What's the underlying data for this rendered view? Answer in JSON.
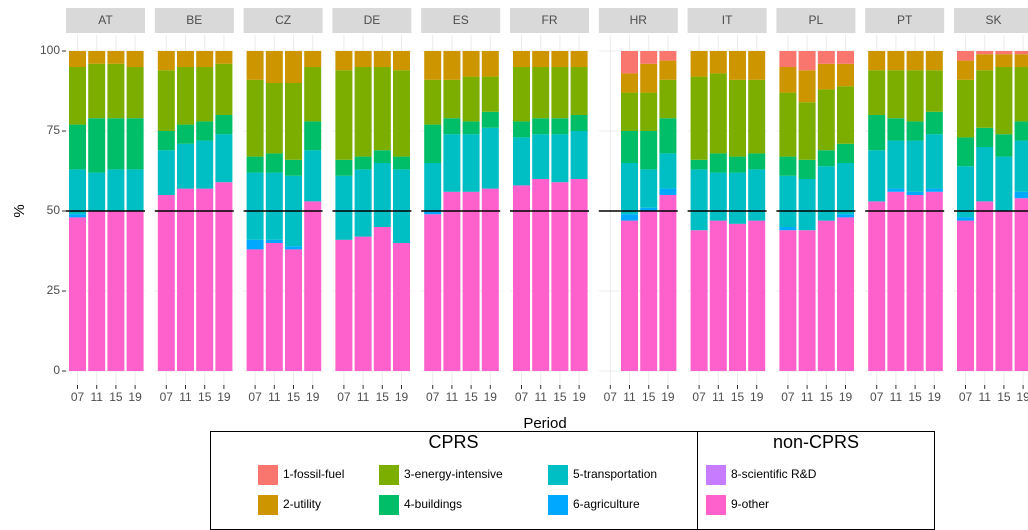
{
  "chart_data": {
    "type": "stacked-bar",
    "y_label": "%",
    "x_label": "Period",
    "facets": [
      "AT",
      "BE",
      "CZ",
      "DE",
      "ES",
      "FR",
      "HR",
      "IT",
      "PL",
      "PT",
      "SK"
    ],
    "categories": [
      "07",
      "11",
      "15",
      "19"
    ],
    "ylim": [
      0,
      100
    ],
    "yticks": [
      0,
      25,
      50,
      75,
      100
    ],
    "hline": 50,
    "grid": true,
    "legend_groups": [
      {
        "title": "CPRS",
        "items": [
          0,
          1,
          2,
          3,
          4,
          5
        ]
      },
      {
        "title": "non-CPRS",
        "items": [
          6,
          7
        ]
      }
    ],
    "series": [
      {
        "name": "1-fossil-fuel",
        "color": "#F8766D",
        "values": [
          [
            0,
            0,
            0,
            0
          ],
          [
            0,
            0,
            0,
            0
          ],
          [
            0,
            0,
            0,
            0
          ],
          [
            0,
            0,
            0,
            0
          ],
          [
            0,
            0,
            0,
            0
          ],
          [
            0,
            0,
            0,
            0
          ],
          [
            null,
            7,
            4,
            3
          ],
          [
            0,
            0,
            0,
            0
          ],
          [
            5,
            6,
            4,
            4
          ],
          [
            0,
            0,
            0,
            0
          ],
          [
            3,
            1,
            1,
            1
          ]
        ]
      },
      {
        "name": "2-utility",
        "color": "#CD9600",
        "values": [
          [
            5,
            4,
            4,
            5
          ],
          [
            6,
            5,
            5,
            4
          ],
          [
            9,
            10,
            10,
            5
          ],
          [
            6,
            5,
            5,
            6
          ],
          [
            9,
            9,
            8,
            8
          ],
          [
            5,
            5,
            5,
            5
          ],
          [
            null,
            6,
            9,
            6
          ],
          [
            8,
            7,
            9,
            9
          ],
          [
            8,
            10,
            8,
            7
          ],
          [
            6,
            6,
            6,
            6
          ],
          [
            6,
            5,
            4,
            4
          ]
        ]
      },
      {
        "name": "3-energy-intensive",
        "color": "#7CAE00",
        "values": [
          [
            18,
            17,
            17,
            16
          ],
          [
            19,
            18,
            17,
            16
          ],
          [
            24,
            22,
            24,
            17
          ],
          [
            28,
            28,
            26,
            27
          ],
          [
            14,
            12,
            14,
            11
          ],
          [
            17,
            16,
            16,
            15
          ],
          [
            null,
            12,
            12,
            12
          ],
          [
            26,
            25,
            24,
            23
          ],
          [
            20,
            18,
            19,
            18
          ],
          [
            14,
            15,
            16,
            13
          ],
          [
            18,
            18,
            21,
            17
          ]
        ]
      },
      {
        "name": "4-buildings",
        "color": "#00BE67",
        "values": [
          [
            14,
            17,
            16,
            16
          ],
          [
            6,
            6,
            6,
            6
          ],
          [
            5,
            6,
            5,
            9
          ],
          [
            5,
            4,
            4,
            4
          ],
          [
            12,
            5,
            4,
            5
          ],
          [
            5,
            5,
            5,
            5
          ],
          [
            null,
            10,
            12,
            11
          ],
          [
            3,
            6,
            5,
            5
          ],
          [
            6,
            6,
            5,
            6
          ],
          [
            11,
            7,
            6,
            7
          ],
          [
            9,
            6,
            7,
            6
          ]
        ]
      },
      {
        "name": "5-transportation",
        "color": "#00BFC4",
        "values": [
          [
            14,
            12,
            13,
            13
          ],
          [
            14,
            14,
            15,
            15
          ],
          [
            21,
            21,
            22,
            16
          ],
          [
            20,
            21,
            20,
            23
          ],
          [
            15,
            18,
            18,
            19
          ],
          [
            15,
            14,
            15,
            15
          ],
          [
            null,
            16,
            12,
            11
          ],
          [
            19,
            15,
            16,
            16
          ],
          [
            16,
            16,
            17,
            16
          ],
          [
            16,
            15,
            16,
            17
          ],
          [
            16,
            17,
            17,
            16
          ]
        ]
      },
      {
        "name": "6-agriculture",
        "color": "#00A9FF",
        "values": [
          [
            1,
            0,
            0,
            0
          ],
          [
            0,
            0,
            0,
            0
          ],
          [
            3,
            1,
            1,
            0
          ],
          [
            0,
            0,
            0,
            0
          ],
          [
            1,
            0,
            0,
            0
          ],
          [
            0,
            0,
            0,
            0
          ],
          [
            null,
            2,
            1,
            2
          ],
          [
            0,
            0,
            0,
            0
          ],
          [
            1,
            0,
            0,
            1
          ],
          [
            0,
            1,
            1,
            1
          ],
          [
            1,
            0,
            0,
            2
          ]
        ]
      },
      {
        "name": "8-scientific R&D",
        "color": "#C77CFF",
        "values": [
          [
            0,
            0,
            0,
            0
          ],
          [
            0,
            0,
            0,
            0
          ],
          [
            0,
            0,
            0,
            0
          ],
          [
            0,
            0,
            0,
            0
          ],
          [
            0,
            0,
            0,
            0
          ],
          [
            0,
            0,
            0,
            0
          ],
          [
            null,
            0,
            0,
            0
          ],
          [
            0,
            0,
            0,
            0
          ],
          [
            0,
            0,
            0,
            0
          ],
          [
            0,
            0,
            0,
            0
          ],
          [
            0,
            0,
            0,
            0
          ]
        ]
      },
      {
        "name": "9-other",
        "color": "#FF61CC",
        "values": [
          [
            48,
            50,
            50,
            50
          ],
          [
            55,
            57,
            57,
            59
          ],
          [
            38,
            40,
            38,
            53
          ],
          [
            41,
            42,
            45,
            40
          ],
          [
            49,
            56,
            56,
            57
          ],
          [
            58,
            60,
            59,
            60
          ],
          [
            null,
            47,
            50,
            55
          ],
          [
            44,
            47,
            46,
            47
          ],
          [
            44,
            44,
            47,
            48
          ],
          [
            53,
            56,
            55,
            56
          ],
          [
            47,
            53,
            50,
            54
          ]
        ]
      }
    ]
  }
}
